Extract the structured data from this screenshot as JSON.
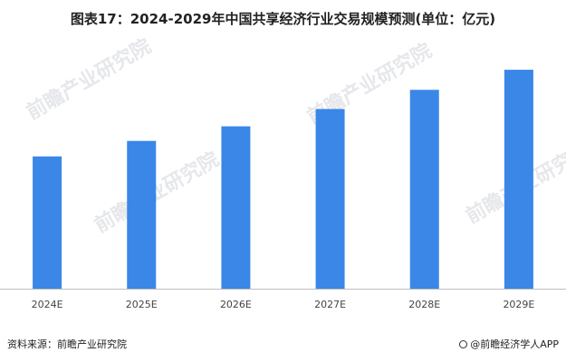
{
  "title": "图表17：2024-2029年中国共享经济行业交易规模预测(单位：亿元)",
  "footer": {
    "source": "资料来源：前瞻产业研究院",
    "brand": "@前瞻经济学人APP"
  },
  "watermark": {
    "text": "前瞻产业研究院"
  },
  "colors": {
    "bar": "#3a87e8",
    "axis": "#bfbfbf",
    "tick_label": "#444444"
  },
  "chart_data": {
    "type": "bar",
    "title": "图表17：2024-2029年中国共享经济行业交易规模预测(单位：亿元)",
    "categories": [
      "2024E",
      "2025E",
      "2026E",
      "2027E",
      "2028E",
      "2029E"
    ],
    "values": [
      145,
      162,
      178,
      197,
      218,
      240
    ],
    "ylim": [
      0,
      250
    ],
    "grid": false,
    "legend": "none",
    "data_labels": false,
    "value_axis_shown": false
  }
}
